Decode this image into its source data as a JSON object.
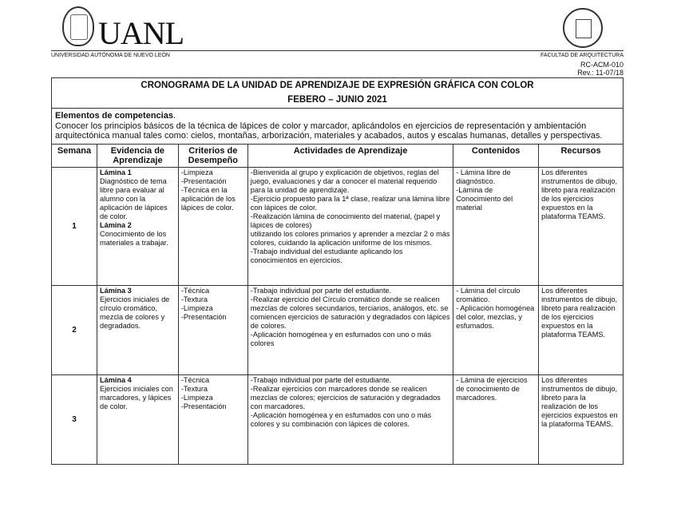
{
  "header": {
    "logo_text": "UANL",
    "university": "UNIVERSIDAD AUTÓNOMA DE NUEVO LEÓN",
    "faculty": "FACULTAD DE ARQUITECTURA",
    "code": "RC-ACM-010",
    "revision": "Rev.: 11-07/18"
  },
  "doc": {
    "title": "CRONOGRAMA DE LA UNIDAD DE APRENDIZAJE DE EXPRESIÓN GRÁFICA CON COLOR",
    "period": "FEBERO – JUNIO 2021",
    "competencies_heading": "Elementos de competencias",
    "competencies_text": "Conocer los principios básicos de la técnica de lápices de color y marcador, aplicándolos en ejercicios de representación y ambientación arquitectónica manual tales como: cielos, montañas, arborización, materiales y acabados, autos y escalas humanas, detalles y perspectivas."
  },
  "columns": [
    "Semana",
    "Evidencia de Aprendizaje",
    "Criterios de Desempeño",
    "Actividades de Aprendizaje",
    "Contenidos",
    "Recursos"
  ],
  "rows": [
    {
      "week": "1",
      "evidence": [
        {
          "title": "Lámina 1",
          "text": "Diagnóstico de tema libre para evaluar al alumno con la aplicación de lápices de color."
        },
        {
          "title": "Lámina 2",
          "text": "Conocimiento de los materiales a trabajar."
        }
      ],
      "criteria": "-Limpieza\n-Presentación\n-Técnica en la aplicación de los lápices de color.",
      "activities": "-Bienvenida al grupo y explicación de objetivos, reglas del juego, evaluaciones y dar a conocer el material requerido para la unidad de aprendizaje.\n-Ejercicio propuesto para la 1ª clase, realizar una lámina libre con lápices de color.\n-Realización lámina de conocimiento del material, (papel y lápices de colores)\nutilizando los colores primarios y aprender a mezclar 2 o más colores, cuidando la aplicación uniforme de los mismos.\n-Trabajo individual del estudiante aplicando los conocimientos en ejercicios.",
      "contents": "- Lámina libre de diagnóstico.\n-Lámina de Conocimiento del material",
      "resources": "Los diferentes instrumentos de dibujo, libreto para realización de los ejercicios expuestos en la plataforma TEAMS."
    },
    {
      "week": "2",
      "evidence": [
        {
          "title": "Lámina 3",
          "text": "Ejercicios iniciales de círculo cromático, mezcla de colores y degradados."
        }
      ],
      "criteria": "-Técnica\n-Textura\n-Limpieza\n-Presentación",
      "activities": "-Trabajo individual por parte del estudiante.\n-Realizar ejercicio del Círculo cromático donde se realicen mezclas de colores secundarios, terciarios, análogos, etc. se comiencen ejercicios de saturación y degradados con lápices de colores.\n-Aplicación homogénea y en esfumados con uno o más colores",
      "contents": "- Lámina del círculo cromático.\n- Aplicación homogénea del color, mezclas, y esfumados.",
      "resources": "Los diferentes instrumentos de dibujo, libreto para realización de los ejercicios expuestos en la plataforma TEAMS."
    },
    {
      "week": "3",
      "evidence": [
        {
          "title": "Lámina 4",
          "text": "Ejercicios iniciales con marcadores, y lápices de color."
        }
      ],
      "criteria": "-Técnica\n-Textura\n-Limpieza\n-Presentación",
      "activities": "-Trabajo individual por parte del estudiante.\n-Realizar ejercicios con marcadores donde se realicen mezclas de colores; ejercicios de saturación y degradados con marcadores.\n-Aplicación homogénea y en esfumados con uno o más colores y su combinación con lápices de colores.",
      "contents": "- Lámina de ejercicios de conocimiento de marcadores.",
      "resources": "Los diferentes instrumentos de dibujo, libreto para la realización de los ejercicios expuestos en la plataforma TEAMS."
    }
  ]
}
